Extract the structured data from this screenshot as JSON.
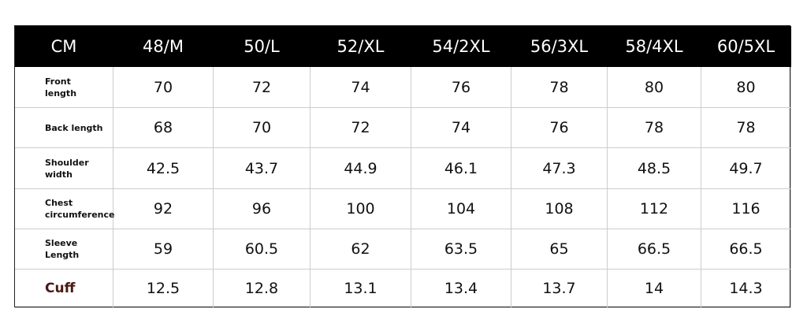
{
  "table": {
    "header": [
      "CM",
      "48/M",
      "50/L",
      "52/XL",
      "54/2XL",
      "56/3XL",
      "58/4XL",
      "60/5XL"
    ],
    "rows": [
      {
        "label": [
          "Front",
          "length"
        ],
        "values": [
          70,
          72,
          74,
          76,
          78,
          80,
          80
        ]
      },
      {
        "label": [
          "Back length"
        ],
        "values": [
          68,
          70,
          72,
          74,
          76,
          78,
          78
        ]
      },
      {
        "label": [
          "Shoulder",
          "width"
        ],
        "values": [
          42.5,
          43.7,
          44.9,
          46.1,
          47.3,
          48.5,
          49.7
        ]
      },
      {
        "label": [
          "Chest",
          "circumference"
        ],
        "values": [
          92,
          96,
          100,
          104,
          108,
          112,
          116
        ]
      },
      {
        "label": [
          "Sleeve",
          "Length"
        ],
        "values": [
          59,
          60.5,
          62,
          63.5,
          65,
          66.5,
          66.5
        ]
      },
      {
        "label": [
          "Cuff"
        ],
        "values": [
          12.5,
          12.8,
          13.1,
          13.4,
          13.7,
          14,
          14.3
        ]
      }
    ]
  }
}
